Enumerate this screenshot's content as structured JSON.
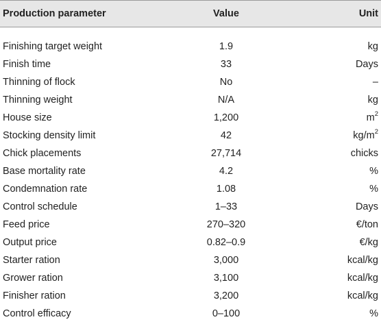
{
  "header": {
    "parameter": "Production parameter",
    "value": "Value",
    "unit": "Unit"
  },
  "rows": [
    {
      "parameter": "Finishing target weight",
      "value": "1.9",
      "unit": "kg"
    },
    {
      "parameter": "Finish time",
      "value": "33",
      "unit": "Days"
    },
    {
      "parameter": "Thinning of flock",
      "value": "No",
      "unit": "–"
    },
    {
      "parameter": "Thinning weight",
      "value": "N/A",
      "unit": "kg"
    },
    {
      "parameter": "House size",
      "value": "1,200",
      "unit": "m",
      "unit_sup": "2"
    },
    {
      "parameter": "Stocking density limit",
      "value": "42",
      "unit": "kg/m",
      "unit_sup": "2"
    },
    {
      "parameter": "Chick placements",
      "value": "27,714",
      "unit": "chicks"
    },
    {
      "parameter": "Base mortality rate",
      "value": "4.2",
      "unit": "%"
    },
    {
      "parameter": "Condemnation rate",
      "value": "1.08",
      "unit": "%"
    },
    {
      "parameter": "Control schedule",
      "value": "1–33",
      "unit": "Days"
    },
    {
      "parameter": "Feed price",
      "value": "270–320",
      "unit": "€/ton"
    },
    {
      "parameter": "Output price",
      "value": "0.82–0.9",
      "unit": "€/kg"
    },
    {
      "parameter": "Starter ration",
      "value": "3,000",
      "unit": "kcal/kg"
    },
    {
      "parameter": "Grower ration",
      "value": "3,100",
      "unit": "kcal/kg"
    },
    {
      "parameter": "Finisher ration",
      "value": "3,200",
      "unit": "kcal/kg"
    },
    {
      "parameter": "Control efficacy",
      "value": "0–100",
      "unit": "%"
    }
  ]
}
